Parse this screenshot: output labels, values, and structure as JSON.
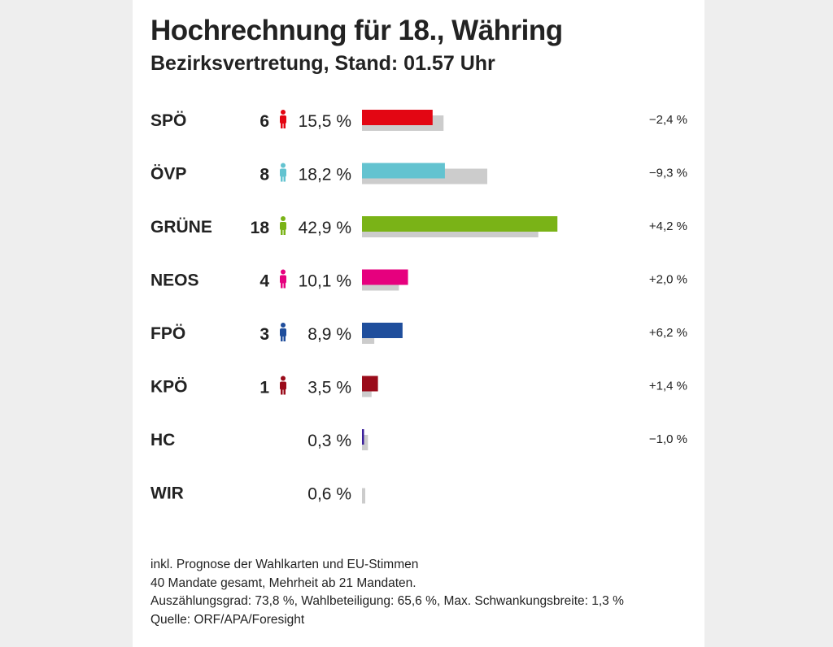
{
  "title": "Hochrechnung für 18., Währing",
  "subtitle": "Bezirksvertretung, Stand: 01.57 Uhr",
  "chart_data": {
    "type": "bar",
    "categories": [
      "SPÖ",
      "ÖVP",
      "GRÜNE",
      "NEOS",
      "FPÖ",
      "KPÖ",
      "HC",
      "WIR"
    ],
    "mandates": [
      "6",
      "8",
      "18",
      "4",
      "3",
      "1",
      "",
      ""
    ],
    "values": [
      15.5,
      18.2,
      42.9,
      10.1,
      8.9,
      3.5,
      0.3,
      0.6
    ],
    "value_labels": [
      "15,5 %",
      "18,2 %",
      "42,9 %",
      "10,1 %",
      "8,9 %",
      "3,5 %",
      "0,3 %",
      "0,6 %"
    ],
    "previous_values": [
      17.9,
      27.5,
      38.7,
      8.1,
      2.7,
      2.1,
      1.3,
      0.6
    ],
    "changes": [
      "−2,4 %",
      "−9,3 %",
      "+4,2 %",
      "+2,0 %",
      "+6,2 %",
      "+1,4 %",
      "−1,0 %",
      ""
    ],
    "colors": [
      "#e30613",
      "#63c3d0",
      "#7ab317",
      "#e6007e",
      "#1f4e9c",
      "#9a0b1a",
      "#3b1f9b",
      "#cccccc"
    ],
    "previous_color": "#cccccc"
  },
  "notes": [
    "inkl. Prognose der Wahlkarten und EU-Stimmen",
    "40 Mandate gesamt, Mehrheit ab 21 Mandaten.",
    "Auszählungsgrad: 73,8 %, Wahlbeteiligung: 65,6 %, Max. Schwankungsbreite: 1,3 %",
    "Quelle: ORF/APA/Foresight"
  ]
}
